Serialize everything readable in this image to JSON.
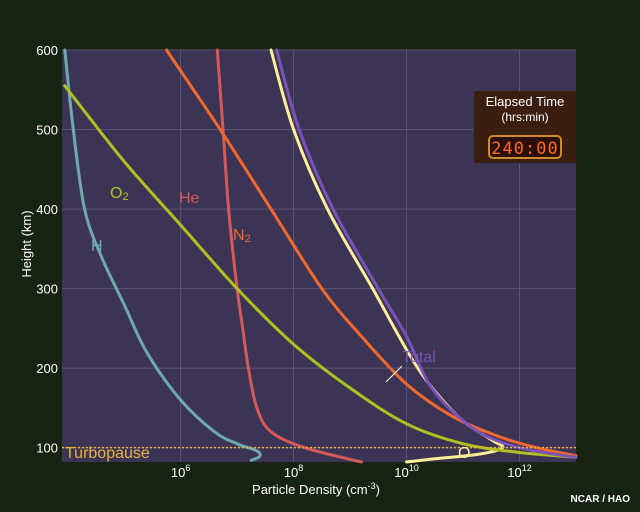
{
  "chart_data": {
    "type": "line",
    "title": "",
    "xlabel": "Particle Density (cm",
    "xlabel_exp": "-3",
    "xlabel_close": ")",
    "ylabel": "Height (km)",
    "x_scale": "log10",
    "xlim_log10": [
      3.9,
      13.0
    ],
    "ylim": [
      82,
      600
    ],
    "grid": true,
    "x_ticks": [
      {
        "base": "10",
        "exp": "6",
        "log10": 6
      },
      {
        "base": "10",
        "exp": "8",
        "log10": 8
      },
      {
        "base": "10",
        "exp": "10",
        "log10": 10
      },
      {
        "base": "10",
        "exp": "12",
        "log10": 12
      }
    ],
    "y_ticks": [
      100,
      200,
      300,
      400,
      500,
      600
    ],
    "series": [
      {
        "name": "H",
        "color": "#6fa9ad",
        "x_log10": [
          3.95,
          4.1,
          4.3,
          4.6,
          5.0,
          5.4,
          6.0,
          6.6,
          7.0,
          7.35,
          7.4,
          7.25
        ],
        "y": [
          600,
          500,
          400,
          340,
          280,
          220,
          160,
          120,
          105,
          96,
          89,
          84
        ]
      },
      {
        "name": "He",
        "color": "#d45a5a",
        "x_log10": [
          6.65,
          6.75,
          6.85,
          7.0,
          7.1,
          7.2,
          7.35,
          7.6,
          8.2,
          9.2
        ],
        "y": [
          600,
          500,
          400,
          300,
          250,
          200,
          150,
          120,
          100,
          82
        ]
      },
      {
        "name": "O",
        "label": "O",
        "color": "#ffee99",
        "x_log10": [
          7.6,
          8.0,
          8.6,
          9.4,
          10.2,
          10.9,
          11.5,
          11.7,
          11.3,
          10.5,
          10.0
        ],
        "y": [
          600,
          500,
          400,
          300,
          200,
          140,
          110,
          100,
          92,
          86,
          82
        ]
      },
      {
        "name": "O2",
        "label": "O",
        "label_sub": "2",
        "color": "#b0c021",
        "x_log10": [
          3.95,
          5.0,
          6.0,
          7.0,
          8.0,
          9.0,
          10.0,
          11.0,
          12.0,
          13.0
        ],
        "y": [
          555,
          460,
          380,
          300,
          230,
          175,
          130,
          105,
          94,
          88
        ]
      },
      {
        "name": "N2",
        "label": "N",
        "label_sub": "2",
        "color": "#f0682c",
        "x_log10": [
          5.75,
          6.7,
          7.6,
          8.5,
          9.2,
          10.0,
          10.8,
          11.6,
          12.3,
          13.0
        ],
        "y": [
          600,
          500,
          400,
          300,
          240,
          180,
          140,
          115,
          100,
          90
        ]
      },
      {
        "name": "Total",
        "label": "Total",
        "color": "#7a52b8",
        "x_log10": [
          7.7,
          8.1,
          8.7,
          9.5,
          10.0,
          10.4,
          10.9,
          11.4,
          12.0,
          12.6,
          13.0
        ],
        "y": [
          600,
          500,
          400,
          300,
          240,
          180,
          140,
          115,
          100,
          92,
          88
        ]
      }
    ],
    "annotations": {
      "turbopause": {
        "label": "Turbopause",
        "y": 100,
        "color": "#e6b23a"
      },
      "elapsed_time": {
        "title": "Elapsed Time",
        "subtitle": "(hrs:min)",
        "value": "240:00"
      },
      "credit": "NCAR / HAO"
    },
    "colors": {
      "background": "#172412",
      "plot_area": "#3c3454",
      "grid": "#5a5474"
    }
  }
}
